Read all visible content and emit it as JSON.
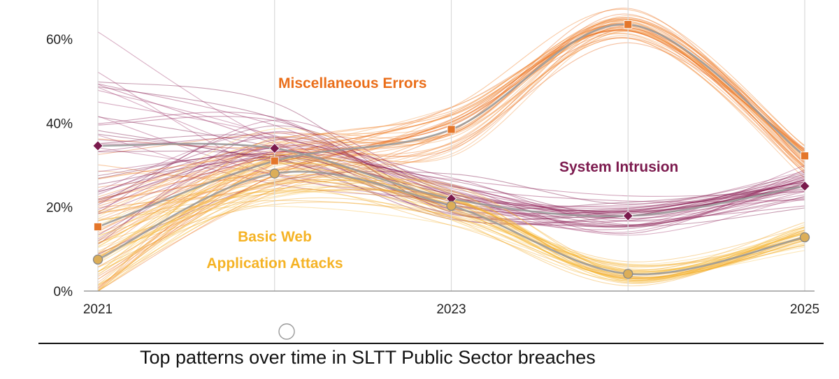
{
  "chart_data": {
    "type": "line",
    "title": "Top patterns over time in SLTT Public Sector breaches",
    "xlabel": "",
    "ylabel": "",
    "x": [
      2021,
      2022,
      2023,
      2024,
      2025
    ],
    "x_tick_labels": [
      "2021",
      "2023",
      "2025"
    ],
    "x_tick_values": [
      2021,
      2023,
      2025
    ],
    "y_tick_labels": [
      "0%",
      "20%",
      "40%",
      "60%"
    ],
    "y_tick_values": [
      0,
      20,
      40,
      60
    ],
    "ylim": [
      0,
      68
    ],
    "grid": "vertical",
    "series": [
      {
        "name": "Miscellaneous Errors",
        "values": [
          15.3,
          31,
          38.5,
          63.5,
          32.2
        ],
        "color": "#f07f23",
        "marker": "square"
      },
      {
        "name": "System Intrusion",
        "values": [
          34.6,
          34,
          22,
          17.9,
          25
        ],
        "color": "#8e1c55",
        "marker": "diamond"
      },
      {
        "name": "Basic Web Application Attacks",
        "name_lines": [
          "Basic Web",
          "Application Attacks"
        ],
        "values": [
          7.5,
          28,
          20.3,
          4.1,
          12.8
        ],
        "color": "#f5b325",
        "marker": "circle"
      }
    ]
  }
}
